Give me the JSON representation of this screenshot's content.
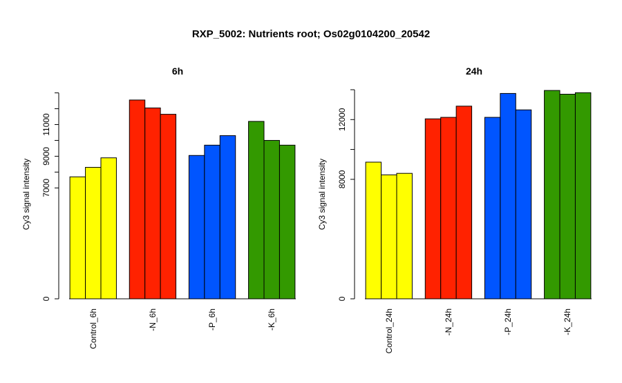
{
  "title": "RXP_5002: Nutrients root; Os02g0104200_20542",
  "chart_data": [
    {
      "type": "bar",
      "title": "6h",
      "ylabel": "Cy3 signal intensity",
      "xlabel": "",
      "ylim": [
        0,
        13200
      ],
      "yticks": [
        0,
        7000,
        9000,
        11000
      ],
      "ytick_labels": [
        "0",
        "7000",
        "9000",
        "11000"
      ],
      "y_minor_ticks": [
        8000,
        10000,
        12000,
        13000
      ],
      "categories": [
        "Control_6h",
        "-N_6h",
        "-P_6h",
        "-K_6h"
      ],
      "colors": [
        "#ffff00",
        "#ff2200",
        "#0055ff",
        "#339900"
      ],
      "values": [
        [
          7700,
          8300,
          8900
        ],
        [
          12550,
          12050,
          11650
        ],
        [
          9050,
          9700,
          10300
        ],
        [
          11200,
          10000,
          9700
        ]
      ]
    },
    {
      "type": "bar",
      "title": "24h",
      "ylabel": "Cy3 signal intensity",
      "xlabel": "",
      "ylim": [
        0,
        14000
      ],
      "yticks": [
        0,
        8000,
        12000
      ],
      "ytick_labels": [
        "0",
        "8000",
        "12000"
      ],
      "y_minor_ticks": [
        10000,
        14000
      ],
      "categories": [
        "Control_24h",
        "-N_24h",
        "-P_24h",
        "-K_24h"
      ],
      "colors": [
        "#ffff00",
        "#ff2200",
        "#0055ff",
        "#339900"
      ],
      "values": [
        [
          9150,
          8300,
          8400
        ],
        [
          12050,
          12150,
          12900
        ],
        [
          12150,
          13750,
          12650
        ],
        [
          13950,
          13700,
          13800
        ]
      ]
    }
  ]
}
